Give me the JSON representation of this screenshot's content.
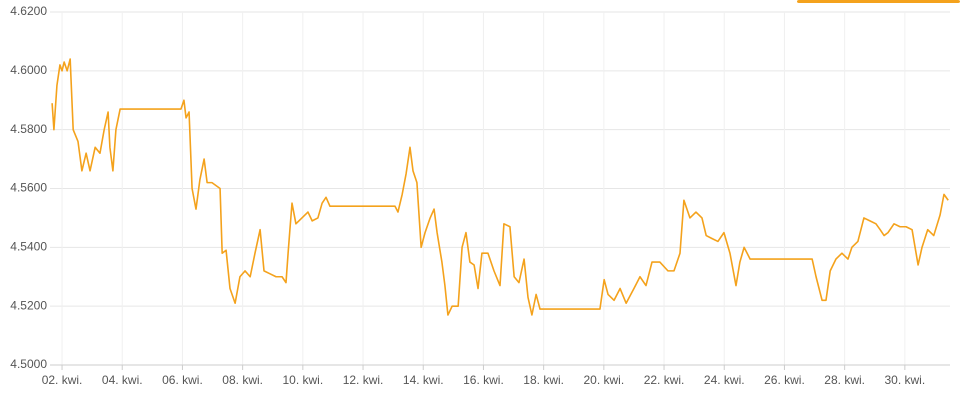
{
  "chart_data": {
    "type": "line",
    "x": [
      1.67,
      1.73,
      1.83,
      1.93,
      2.0,
      2.07,
      2.17,
      2.27,
      2.37,
      2.53,
      2.66,
      2.8,
      2.93,
      3.1,
      3.26,
      3.4,
      3.53,
      3.59,
      3.69,
      3.79,
      3.93,
      5.95,
      6.05,
      6.12,
      6.22,
      6.32,
      6.45,
      6.58,
      6.72,
      6.82,
      6.98,
      7.25,
      7.32,
      7.45,
      7.58,
      7.75,
      7.91,
      8.08,
      8.25,
      8.41,
      8.58,
      8.71,
      8.91,
      9.11,
      9.31,
      9.44,
      9.51,
      9.57,
      9.64,
      9.77,
      9.97,
      10.17,
      10.31,
      10.5,
      10.64,
      10.77,
      10.9,
      13.06,
      13.16,
      13.3,
      13.43,
      13.56,
      13.66,
      13.79,
      13.93,
      14.06,
      14.23,
      14.36,
      14.46,
      14.62,
      14.72,
      14.82,
      14.96,
      15.16,
      15.29,
      15.42,
      15.55,
      15.69,
      15.82,
      15.95,
      16.15,
      16.35,
      16.55,
      16.68,
      16.88,
      17.02,
      17.18,
      17.35,
      17.48,
      17.61,
      17.75,
      17.88,
      19.87,
      20.01,
      20.14,
      20.34,
      20.54,
      20.74,
      21.0,
      21.2,
      21.4,
      21.6,
      21.86,
      22.13,
      22.33,
      22.53,
      22.66,
      22.86,
      23.06,
      23.26,
      23.4,
      23.59,
      23.79,
      23.99,
      24.19,
      24.39,
      24.52,
      24.66,
      24.86,
      26.92,
      27.05,
      27.25,
      27.38,
      27.52,
      27.71,
      27.91,
      28.11,
      28.24,
      28.44,
      28.64,
      28.84,
      29.04,
      29.18,
      29.31,
      29.44,
      29.64,
      29.84,
      30.04,
      30.24,
      30.44,
      30.57,
      30.76,
      30.96,
      31.17,
      31.3,
      31.44
    ],
    "series": [
      {
        "color": "#f4a21c",
        "values": [
          4.589,
          4.58,
          4.595,
          4.602,
          4.6,
          4.603,
          4.6,
          4.604,
          4.58,
          4.576,
          4.566,
          4.572,
          4.566,
          4.574,
          4.572,
          4.58,
          4.586,
          4.574,
          4.566,
          4.58,
          4.587,
          4.587,
          4.59,
          4.584,
          4.586,
          4.56,
          4.553,
          4.563,
          4.57,
          4.562,
          4.562,
          4.56,
          4.538,
          4.539,
          4.526,
          4.521,
          4.53,
          4.532,
          4.53,
          4.538,
          4.546,
          4.532,
          4.531,
          4.53,
          4.53,
          4.528,
          4.538,
          4.546,
          4.555,
          4.548,
          4.55,
          4.552,
          4.549,
          4.55,
          4.555,
          4.557,
          4.554,
          4.554,
          4.552,
          4.558,
          4.565,
          4.574,
          4.566,
          4.562,
          4.54,
          4.545,
          4.55,
          4.553,
          4.545,
          4.535,
          4.527,
          4.517,
          4.52,
          4.52,
          4.54,
          4.545,
          4.535,
          4.534,
          4.526,
          4.538,
          4.538,
          4.532,
          4.527,
          4.548,
          4.547,
          4.53,
          4.528,
          4.536,
          4.523,
          4.517,
          4.524,
          4.519,
          4.519,
          4.529,
          4.524,
          4.522,
          4.526,
          4.521,
          4.526,
          4.53,
          4.527,
          4.535,
          4.535,
          4.532,
          4.532,
          4.538,
          4.556,
          4.55,
          4.552,
          4.55,
          4.544,
          4.543,
          4.542,
          4.545,
          4.538,
          4.527,
          4.535,
          4.54,
          4.536,
          4.536,
          4.53,
          4.522,
          4.522,
          4.532,
          4.536,
          4.538,
          4.536,
          4.54,
          4.542,
          4.55,
          4.549,
          4.548,
          4.546,
          4.544,
          4.545,
          4.548,
          4.547,
          4.547,
          4.546,
          4.534,
          4.54,
          4.546,
          4.544,
          4.551,
          4.558,
          4.556
        ]
      }
    ],
    "xlim": [
      1.6,
      31.5
    ],
    "xticks": [
      {
        "value": 2,
        "label": "02. kwi."
      },
      {
        "value": 4,
        "label": "04. kwi."
      },
      {
        "value": 6,
        "label": "06. kwi."
      },
      {
        "value": 8,
        "label": "08. kwi."
      },
      {
        "value": 10,
        "label": "10. kwi."
      },
      {
        "value": 12,
        "label": "12. kwi."
      },
      {
        "value": 14,
        "label": "14. kwi."
      },
      {
        "value": 16,
        "label": "16. kwi."
      },
      {
        "value": 18,
        "label": "18. kwi."
      },
      {
        "value": 20,
        "label": "20. kwi."
      },
      {
        "value": 22,
        "label": "22. kwi."
      },
      {
        "value": 24,
        "label": "24. kwi."
      },
      {
        "value": 26,
        "label": "26. kwi."
      },
      {
        "value": 28,
        "label": "28. kwi."
      },
      {
        "value": 30,
        "label": "30. kwi."
      }
    ],
    "ylim": [
      4.5,
      4.62
    ],
    "yticks": [
      {
        "value": 4.5,
        "label": "4.5000"
      },
      {
        "value": 4.52,
        "label": "4.5200"
      },
      {
        "value": 4.54,
        "label": "4.5400"
      },
      {
        "value": 4.56,
        "label": "4.5600"
      },
      {
        "value": 4.58,
        "label": "4.5800"
      },
      {
        "value": 4.6,
        "label": "4.6000"
      },
      {
        "value": 4.62,
        "label": "4.6200"
      }
    ],
    "grid": true
  }
}
